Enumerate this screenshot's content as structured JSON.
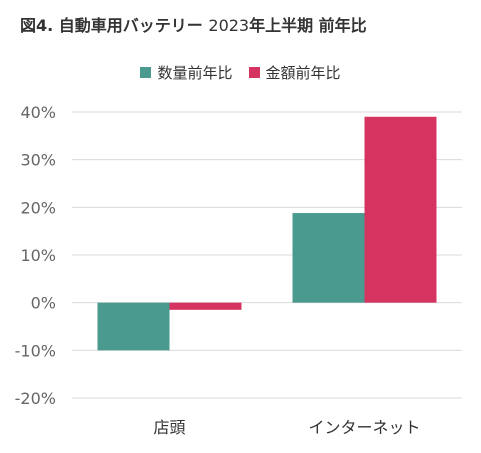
{
  "title": {
    "prefix": "図4.",
    "main": "自動車用バッテリー",
    "year": "2023",
    "suffix": "年上半期 前年比"
  },
  "chart_data": {
    "type": "bar",
    "title": "図4. 自動車用バッテリー 2023年上半期 前年比",
    "xlabel": "",
    "ylabel": "",
    "categories": [
      "店頭",
      "インターネット"
    ],
    "series": [
      {
        "name": "数量前年比",
        "color": "#4a9a8f",
        "values": [
          -10,
          18.8
        ]
      },
      {
        "name": "金額前年比",
        "color": "#d63460",
        "values": [
          -1.5,
          39
        ]
      }
    ],
    "ylim": [
      -20,
      40
    ],
    "yticks": [
      -20,
      -10,
      0,
      10,
      20,
      30,
      40
    ],
    "ytick_labels": [
      "-20%",
      "-10%",
      "0%",
      "10%",
      "20%",
      "30%",
      "40%"
    ],
    "grid": true,
    "legend_position": "top"
  }
}
